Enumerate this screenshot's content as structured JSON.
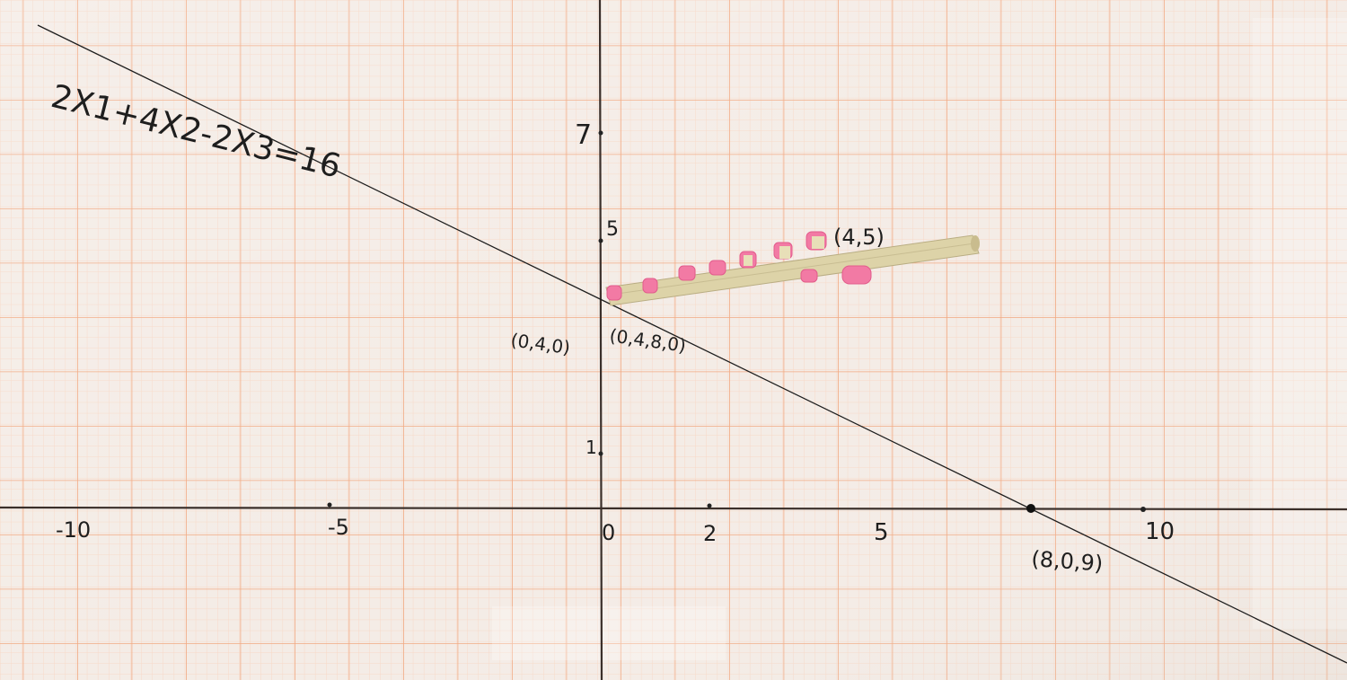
{
  "equation": "2X1+4X2-2X3=16",
  "y_ticks": [
    "7",
    "5",
    "1"
  ],
  "x_ticks": [
    "-10",
    "-5",
    "0",
    "2",
    "5",
    "10"
  ],
  "points": {
    "left": "(0,4,0)",
    "right": "(0,4,8,0)",
    "stick_end": "(4,5)",
    "x_intercept": "(8,0,9)"
  },
  "colors": {
    "paper": "#f4ece6",
    "grid_major": "#f2a27a",
    "grid_minor": "#f7d3bd",
    "ink": "#1e1e1e",
    "stick": "#ddd3a8",
    "eraser": "#f27aa4"
  }
}
